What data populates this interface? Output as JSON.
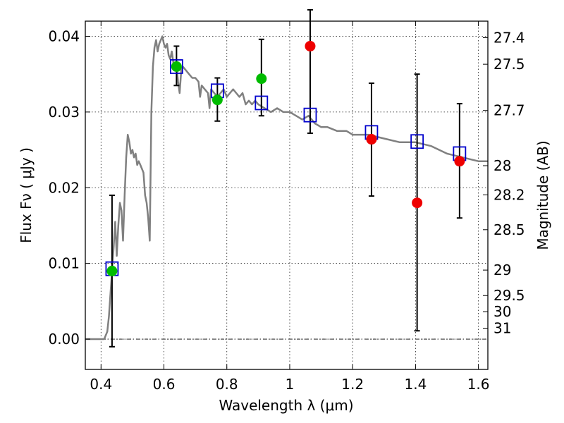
{
  "chart_data": {
    "type": "scatter",
    "xlabel": "Wavelength  λ (μm)",
    "ylabel": "Flux  Fν  ( μJy )",
    "y2label": "Magnitude (AB)",
    "xlim": [
      0.35,
      1.63
    ],
    "ylim": [
      -0.004,
      0.042
    ],
    "grid": true,
    "colors": {
      "sed_line": "#808080",
      "model_box": "#0000cc",
      "detection": "#00bb00",
      "nondetection": "#ee0000",
      "errorbar": "#000000"
    },
    "x_ticks": [
      {
        "value": 0.4,
        "label": "0.4"
      },
      {
        "value": 0.6,
        "label": "0.6"
      },
      {
        "value": 0.8,
        "label": "0.8"
      },
      {
        "value": 1.0,
        "label": "1"
      },
      {
        "value": 1.2,
        "label": "1.2"
      },
      {
        "value": 1.4,
        "label": "1.4"
      },
      {
        "value": 1.6,
        "label": "1.6"
      }
    ],
    "y_ticks": [
      {
        "value": 0.0,
        "label": "0.00"
      },
      {
        "value": 0.01,
        "label": "0.01"
      },
      {
        "value": 0.02,
        "label": "0.02"
      },
      {
        "value": 0.03,
        "label": "0.03"
      },
      {
        "value": 0.04,
        "label": "0.04"
      }
    ],
    "y2_ticks": [
      {
        "mag": 27.4,
        "label": "27.4"
      },
      {
        "mag": 27.5,
        "label": "27.5"
      },
      {
        "mag": 27.7,
        "label": "27.7"
      },
      {
        "mag": 28.0,
        "label": "28"
      },
      {
        "mag": 28.2,
        "label": "28.2"
      },
      {
        "mag": 28.5,
        "label": "28.5"
      },
      {
        "mag": 29.0,
        "label": "29"
      },
      {
        "mag": 29.5,
        "label": "29.5"
      },
      {
        "mag": 30.0,
        "label": "30"
      },
      {
        "mag": 31.0,
        "label": "31"
      }
    ],
    "sed_curve": [
      [
        0.35,
        0.0
      ],
      [
        0.4,
        0.0
      ],
      [
        0.41,
        0.0
      ],
      [
        0.42,
        0.001
      ],
      [
        0.425,
        0.003
      ],
      [
        0.43,
        0.006
      ],
      [
        0.44,
        0.012
      ],
      [
        0.445,
        0.0155
      ],
      [
        0.45,
        0.011
      ],
      [
        0.455,
        0.015
      ],
      [
        0.46,
        0.018
      ],
      [
        0.465,
        0.017
      ],
      [
        0.47,
        0.013
      ],
      [
        0.475,
        0.019
      ],
      [
        0.48,
        0.024
      ],
      [
        0.485,
        0.027
      ],
      [
        0.49,
        0.026
      ],
      [
        0.495,
        0.0245
      ],
      [
        0.5,
        0.025
      ],
      [
        0.505,
        0.024
      ],
      [
        0.51,
        0.0245
      ],
      [
        0.515,
        0.023
      ],
      [
        0.52,
        0.0235
      ],
      [
        0.525,
        0.023
      ],
      [
        0.53,
        0.0225
      ],
      [
        0.535,
        0.022
      ],
      [
        0.54,
        0.019
      ],
      [
        0.545,
        0.018
      ],
      [
        0.55,
        0.016
      ],
      [
        0.555,
        0.013
      ],
      [
        0.56,
        0.03
      ],
      [
        0.565,
        0.036
      ],
      [
        0.57,
        0.0385
      ],
      [
        0.575,
        0.0395
      ],
      [
        0.58,
        0.038
      ],
      [
        0.585,
        0.039
      ],
      [
        0.59,
        0.0395
      ],
      [
        0.595,
        0.04
      ],
      [
        0.6,
        0.039
      ],
      [
        0.605,
        0.0385
      ],
      [
        0.61,
        0.039
      ],
      [
        0.615,
        0.0375
      ],
      [
        0.62,
        0.037
      ],
      [
        0.625,
        0.038
      ],
      [
        0.63,
        0.0365
      ],
      [
        0.64,
        0.036
      ],
      [
        0.645,
        0.034
      ],
      [
        0.65,
        0.0325
      ],
      [
        0.655,
        0.0355
      ],
      [
        0.66,
        0.036
      ],
      [
        0.67,
        0.0355
      ],
      [
        0.68,
        0.035
      ],
      [
        0.69,
        0.0345
      ],
      [
        0.7,
        0.0345
      ],
      [
        0.71,
        0.034
      ],
      [
        0.715,
        0.032
      ],
      [
        0.72,
        0.0335
      ],
      [
        0.73,
        0.033
      ],
      [
        0.74,
        0.0325
      ],
      [
        0.745,
        0.0305
      ],
      [
        0.75,
        0.033
      ],
      [
        0.76,
        0.0325
      ],
      [
        0.77,
        0.032
      ],
      [
        0.78,
        0.0325
      ],
      [
        0.79,
        0.033
      ],
      [
        0.8,
        0.032
      ],
      [
        0.81,
        0.0325
      ],
      [
        0.82,
        0.033
      ],
      [
        0.83,
        0.0325
      ],
      [
        0.84,
        0.032
      ],
      [
        0.85,
        0.0325
      ],
      [
        0.86,
        0.031
      ],
      [
        0.87,
        0.0315
      ],
      [
        0.88,
        0.031
      ],
      [
        0.89,
        0.0315
      ],
      [
        0.9,
        0.031
      ],
      [
        0.92,
        0.0305
      ],
      [
        0.94,
        0.03
      ],
      [
        0.96,
        0.0305
      ],
      [
        0.98,
        0.03
      ],
      [
        1.0,
        0.03
      ],
      [
        1.02,
        0.0295
      ],
      [
        1.04,
        0.029
      ],
      [
        1.06,
        0.0295
      ],
      [
        1.08,
        0.0285
      ],
      [
        1.1,
        0.028
      ],
      [
        1.12,
        0.028
      ],
      [
        1.15,
        0.0275
      ],
      [
        1.18,
        0.0275
      ],
      [
        1.2,
        0.027
      ],
      [
        1.25,
        0.027
      ],
      [
        1.3,
        0.0265
      ],
      [
        1.35,
        0.026
      ],
      [
        1.4,
        0.026
      ],
      [
        1.45,
        0.0255
      ],
      [
        1.5,
        0.0245
      ],
      [
        1.55,
        0.024
      ],
      [
        1.6,
        0.0235
      ],
      [
        1.63,
        0.0235
      ]
    ],
    "model_points": [
      {
        "x": 0.435,
        "y": 0.0093
      },
      {
        "x": 0.64,
        "y": 0.036
      },
      {
        "x": 0.77,
        "y": 0.0328
      },
      {
        "x": 0.91,
        "y": 0.0312
      },
      {
        "x": 1.065,
        "y": 0.0296
      },
      {
        "x": 1.26,
        "y": 0.0273
      },
      {
        "x": 1.405,
        "y": 0.0261
      },
      {
        "x": 1.54,
        "y": 0.0245
      }
    ],
    "observations": [
      {
        "x": 0.435,
        "y": 0.009,
        "err_low": -0.001,
        "err_high": 0.019,
        "status": "detection"
      },
      {
        "x": 0.64,
        "y": 0.036,
        "err_low": 0.0335,
        "err_high": 0.0387,
        "status": "detection"
      },
      {
        "x": 0.77,
        "y": 0.0316,
        "err_low": 0.0288,
        "err_high": 0.0345,
        "status": "detection"
      },
      {
        "x": 0.91,
        "y": 0.0344,
        "err_low": 0.0295,
        "err_high": 0.0396,
        "status": "detection"
      },
      {
        "x": 1.065,
        "y": 0.0387,
        "err_low": 0.0272,
        "err_high": 0.0435,
        "status": "nondetection"
      },
      {
        "x": 1.26,
        "y": 0.0264,
        "err_low": 0.0189,
        "err_high": 0.0338,
        "status": "nondetection"
      },
      {
        "x": 1.405,
        "y": 0.018,
        "err_low": 0.0011,
        "err_high": 0.035,
        "status": "nondetection"
      },
      {
        "x": 1.54,
        "y": 0.0235,
        "err_low": 0.016,
        "err_high": 0.0311,
        "status": "nondetection"
      }
    ]
  }
}
